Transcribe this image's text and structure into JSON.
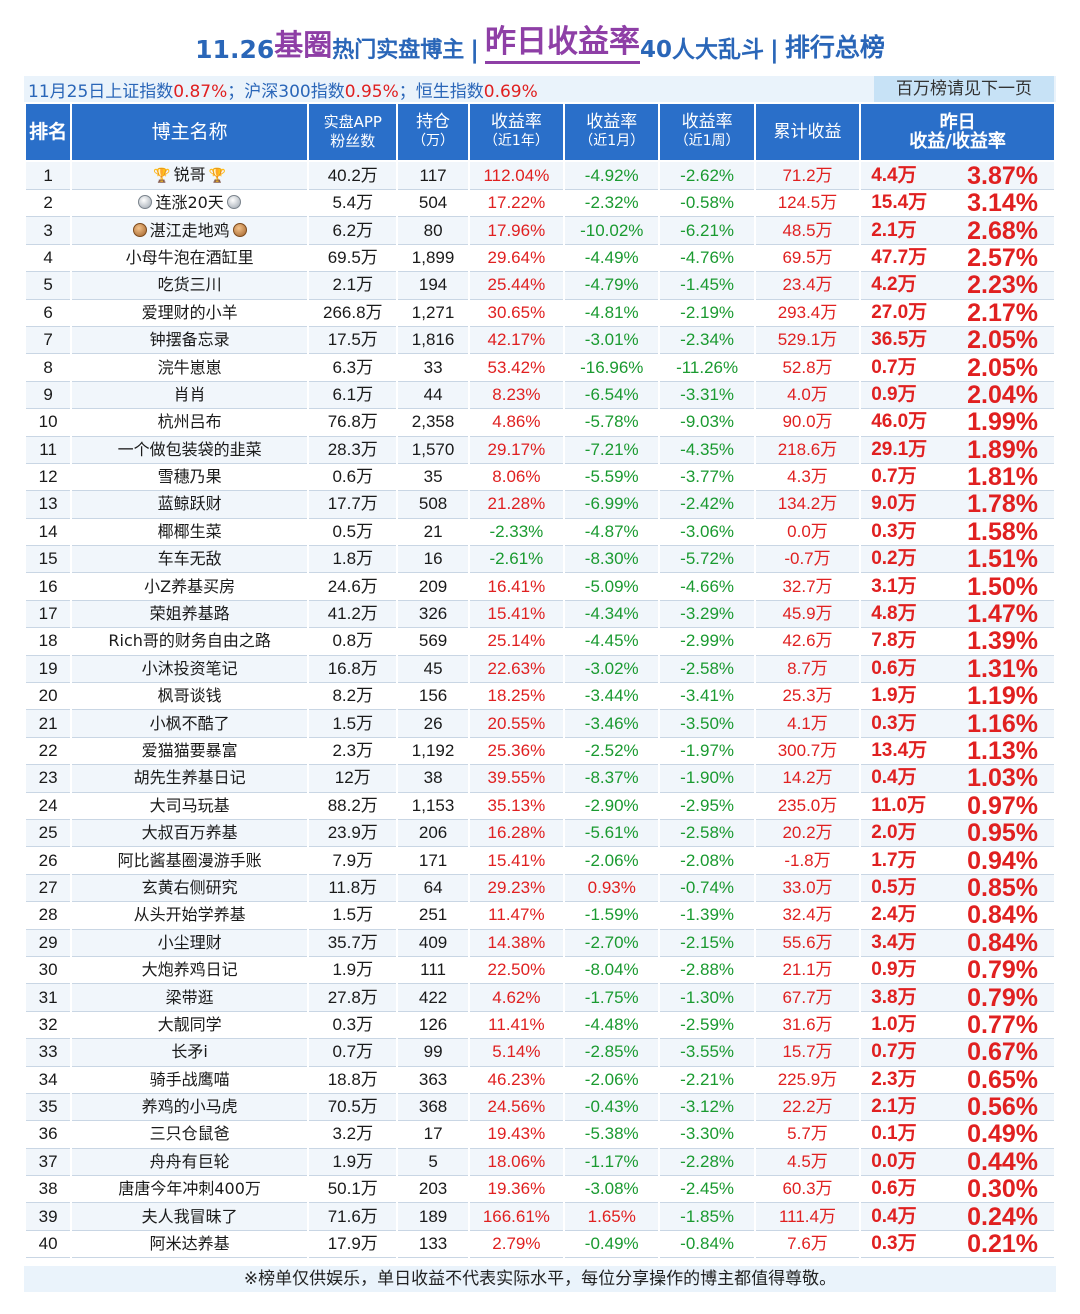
{
  "title": {
    "date": "11.26",
    "circle": "基圈",
    "part1": "热门实盘博主",
    "sep": "|",
    "highlight": "昨日收益率",
    "count": "40人大乱斗",
    "sep2": "|",
    "rank": "排行总榜"
  },
  "subhead": {
    "idx_prefix": "11月25日上证指数",
    "idx1": "0.87%",
    "idx_mid1": "；沪深300指数",
    "idx2": "0.95%",
    "idx_mid2": "；恒生指数",
    "idx3": "0.69%",
    "note": "百万榜请见下一页"
  },
  "headers": {
    "rank": "排名",
    "name": "博主名称",
    "fans_1": "实盘APP",
    "fans_2": "粉丝数",
    "hold_1": "持仓",
    "hold_2": "（万）",
    "y_1": "收益率",
    "y_2": "（近1年）",
    "m_1": "收益率",
    "m_2": "（近1月）",
    "w_1": "收益率",
    "w_2": "（近1周）",
    "cum": "累计收益",
    "last_1": "昨日",
    "last_2": "收益/收益率"
  },
  "rows": [
    {
      "rank": "1",
      "name": "锐哥",
      "medal": "trophy",
      "fans": "40.2万",
      "hold": "117",
      "y": "112.04%",
      "m": "-4.92%",
      "w": "-2.62%",
      "cum": "71.2万",
      "profit": "4.4万",
      "rate": "3.87%"
    },
    {
      "rank": "2",
      "name": "连涨20天",
      "medal": "silver",
      "fans": "5.4万",
      "hold": "504",
      "y": "17.22%",
      "m": "-2.32%",
      "w": "-0.58%",
      "cum": "124.5万",
      "profit": "15.4万",
      "rate": "3.14%"
    },
    {
      "rank": "3",
      "name": "湛江走地鸡",
      "medal": "bronze",
      "fans": "6.2万",
      "hold": "80",
      "y": "17.96%",
      "m": "-10.02%",
      "w": "-6.21%",
      "cum": "48.5万",
      "profit": "2.1万",
      "rate": "2.68%"
    },
    {
      "rank": "4",
      "name": "小母牛泡在酒缸里",
      "medal": "",
      "fans": "69.5万",
      "hold": "1,899",
      "y": "29.64%",
      "m": "-4.49%",
      "w": "-4.76%",
      "cum": "69.5万",
      "profit": "47.7万",
      "rate": "2.57%"
    },
    {
      "rank": "5",
      "name": "吃货三川",
      "medal": "",
      "fans": "2.1万",
      "hold": "194",
      "y": "25.44%",
      "m": "-4.79%",
      "w": "-1.45%",
      "cum": "23.4万",
      "profit": "4.2万",
      "rate": "2.23%"
    },
    {
      "rank": "6",
      "name": "爱理财的小羊",
      "medal": "",
      "fans": "266.8万",
      "hold": "1,271",
      "y": "30.65%",
      "m": "-4.81%",
      "w": "-2.19%",
      "cum": "293.4万",
      "profit": "27.0万",
      "rate": "2.17%"
    },
    {
      "rank": "7",
      "name": "钟摆备忘录",
      "medal": "",
      "fans": "17.5万",
      "hold": "1,816",
      "y": "42.17%",
      "m": "-3.01%",
      "w": "-2.34%",
      "cum": "529.1万",
      "profit": "36.5万",
      "rate": "2.05%"
    },
    {
      "rank": "8",
      "name": "浣牛崽崽",
      "medal": "",
      "fans": "6.3万",
      "hold": "33",
      "y": "53.42%",
      "m": "-16.96%",
      "w": "-11.26%",
      "cum": "52.8万",
      "profit": "0.7万",
      "rate": "2.05%"
    },
    {
      "rank": "9",
      "name": "肖肖",
      "medal": "",
      "fans": "6.1万",
      "hold": "44",
      "y": "8.23%",
      "m": "-6.54%",
      "w": "-3.31%",
      "cum": "4.0万",
      "profit": "0.9万",
      "rate": "2.04%"
    },
    {
      "rank": "10",
      "name": "杭州吕布",
      "medal": "",
      "fans": "76.8万",
      "hold": "2,358",
      "y": "4.86%",
      "m": "-5.78%",
      "w": "-9.03%",
      "cum": "90.0万",
      "profit": "46.0万",
      "rate": "1.99%"
    },
    {
      "rank": "11",
      "name": "一个做包装袋的韭菜",
      "medal": "",
      "fans": "28.3万",
      "hold": "1,570",
      "y": "29.17%",
      "m": "-7.21%",
      "w": "-4.35%",
      "cum": "218.6万",
      "profit": "29.1万",
      "rate": "1.89%"
    },
    {
      "rank": "12",
      "name": "雪穗乃果",
      "medal": "",
      "fans": "0.6万",
      "hold": "35",
      "y": "8.06%",
      "m": "-5.59%",
      "w": "-3.77%",
      "cum": "4.3万",
      "profit": "0.7万",
      "rate": "1.81%"
    },
    {
      "rank": "13",
      "name": "蓝鲸跃财",
      "medal": "",
      "fans": "17.7万",
      "hold": "508",
      "y": "21.28%",
      "m": "-6.99%",
      "w": "-2.42%",
      "cum": "134.2万",
      "profit": "9.0万",
      "rate": "1.78%"
    },
    {
      "rank": "14",
      "name": "椰椰生菜",
      "medal": "",
      "fans": "0.5万",
      "hold": "21",
      "y": "-2.33%",
      "m": "-4.87%",
      "w": "-3.06%",
      "cum": "0.0万",
      "profit": "0.3万",
      "rate": "1.58%"
    },
    {
      "rank": "15",
      "name": "车车无敌",
      "medal": "",
      "fans": "1.8万",
      "hold": "16",
      "y": "-2.61%",
      "m": "-8.30%",
      "w": "-5.72%",
      "cum": "-0.7万",
      "profit": "0.2万",
      "rate": "1.51%"
    },
    {
      "rank": "16",
      "name": "小Z养基买房",
      "medal": "",
      "fans": "24.6万",
      "hold": "209",
      "y": "16.41%",
      "m": "-5.09%",
      "w": "-4.66%",
      "cum": "32.7万",
      "profit": "3.1万",
      "rate": "1.50%"
    },
    {
      "rank": "17",
      "name": "荣姐养基路",
      "medal": "",
      "fans": "41.2万",
      "hold": "326",
      "y": "15.41%",
      "m": "-4.34%",
      "w": "-3.29%",
      "cum": "45.9万",
      "profit": "4.8万",
      "rate": "1.47%"
    },
    {
      "rank": "18",
      "name": "Rich哥的财务自由之路",
      "medal": "",
      "fans": "0.8万",
      "hold": "569",
      "y": "25.14%",
      "m": "-4.45%",
      "w": "-2.99%",
      "cum": "42.6万",
      "profit": "7.8万",
      "rate": "1.39%"
    },
    {
      "rank": "19",
      "name": "小沐投资笔记",
      "medal": "",
      "fans": "16.8万",
      "hold": "45",
      "y": "22.63%",
      "m": "-3.02%",
      "w": "-2.58%",
      "cum": "8.7万",
      "profit": "0.6万",
      "rate": "1.31%"
    },
    {
      "rank": "20",
      "name": "枫哥谈钱",
      "medal": "",
      "fans": "8.2万",
      "hold": "156",
      "y": "18.25%",
      "m": "-3.44%",
      "w": "-3.41%",
      "cum": "25.3万",
      "profit": "1.9万",
      "rate": "1.19%"
    },
    {
      "rank": "21",
      "name": "小枫不酷了",
      "medal": "",
      "fans": "1.5万",
      "hold": "26",
      "y": "20.55%",
      "m": "-3.46%",
      "w": "-3.50%",
      "cum": "4.1万",
      "profit": "0.3万",
      "rate": "1.16%"
    },
    {
      "rank": "22",
      "name": "爱猫猫要暴富",
      "medal": "",
      "fans": "2.3万",
      "hold": "1,192",
      "y": "25.36%",
      "m": "-2.52%",
      "w": "-1.97%",
      "cum": "300.7万",
      "profit": "13.4万",
      "rate": "1.13%"
    },
    {
      "rank": "23",
      "name": "胡先生养基日记",
      "medal": "",
      "fans": "12万",
      "hold": "38",
      "y": "39.55%",
      "m": "-8.37%",
      "w": "-1.90%",
      "cum": "14.2万",
      "profit": "0.4万",
      "rate": "1.03%"
    },
    {
      "rank": "24",
      "name": "大司马玩基",
      "medal": "",
      "fans": "88.2万",
      "hold": "1,153",
      "y": "35.13%",
      "m": "-2.90%",
      "w": "-2.95%",
      "cum": "235.0万",
      "profit": "11.0万",
      "rate": "0.97%"
    },
    {
      "rank": "25",
      "name": "大叔百万养基",
      "medal": "",
      "fans": "23.9万",
      "hold": "206",
      "y": "16.28%",
      "m": "-5.61%",
      "w": "-2.58%",
      "cum": "20.2万",
      "profit": "2.0万",
      "rate": "0.95%"
    },
    {
      "rank": "26",
      "name": "阿比酱基圈漫游手账",
      "medal": "",
      "fans": "7.9万",
      "hold": "171",
      "y": "15.41%",
      "m": "-2.06%",
      "w": "-2.08%",
      "cum": "-1.8万",
      "profit": "1.7万",
      "rate": "0.94%"
    },
    {
      "rank": "27",
      "name": "玄黄右侧研究",
      "medal": "",
      "fans": "11.8万",
      "hold": "64",
      "y": "29.23%",
      "m": "0.93%",
      "w": "-0.74%",
      "cum": "33.0万",
      "profit": "0.5万",
      "rate": "0.85%"
    },
    {
      "rank": "28",
      "name": "从头开始学养基",
      "medal": "",
      "fans": "1.5万",
      "hold": "251",
      "y": "11.47%",
      "m": "-1.59%",
      "w": "-1.39%",
      "cum": "32.4万",
      "profit": "2.4万",
      "rate": "0.84%"
    },
    {
      "rank": "29",
      "name": "小尘理财",
      "medal": "",
      "fans": "35.7万",
      "hold": "409",
      "y": "14.38%",
      "m": "-2.70%",
      "w": "-2.15%",
      "cum": "55.6万",
      "profit": "3.4万",
      "rate": "0.84%"
    },
    {
      "rank": "30",
      "name": "大炮养鸡日记",
      "medal": "",
      "fans": "1.9万",
      "hold": "111",
      "y": "22.50%",
      "m": "-8.04%",
      "w": "-2.88%",
      "cum": "21.1万",
      "profit": "0.9万",
      "rate": "0.79%"
    },
    {
      "rank": "31",
      "name": "梁带逛",
      "medal": "",
      "fans": "27.8万",
      "hold": "422",
      "y": "4.62%",
      "m": "-1.75%",
      "w": "-1.30%",
      "cum": "67.7万",
      "profit": "3.8万",
      "rate": "0.79%"
    },
    {
      "rank": "32",
      "name": "大靓同学",
      "medal": "",
      "fans": "0.3万",
      "hold": "126",
      "y": "11.41%",
      "m": "-4.48%",
      "w": "-2.59%",
      "cum": "31.6万",
      "profit": "1.0万",
      "rate": "0.77%"
    },
    {
      "rank": "33",
      "name": "长矛i",
      "medal": "",
      "fans": "0.7万",
      "hold": "99",
      "y": "5.14%",
      "m": "-2.85%",
      "w": "-3.55%",
      "cum": "15.7万",
      "profit": "0.7万",
      "rate": "0.67%"
    },
    {
      "rank": "34",
      "name": "骑手战鹰喵",
      "medal": "",
      "fans": "18.8万",
      "hold": "363",
      "y": "46.23%",
      "m": "-2.06%",
      "w": "-2.21%",
      "cum": "225.9万",
      "profit": "2.3万",
      "rate": "0.65%"
    },
    {
      "rank": "35",
      "name": "养鸡的小马虎",
      "medal": "",
      "fans": "70.5万",
      "hold": "368",
      "y": "24.56%",
      "m": "-0.43%",
      "w": "-3.12%",
      "cum": "22.2万",
      "profit": "2.1万",
      "rate": "0.56%"
    },
    {
      "rank": "36",
      "name": "三只仓鼠爸",
      "medal": "",
      "fans": "3.2万",
      "hold": "17",
      "y": "19.43%",
      "m": "-5.38%",
      "w": "-3.30%",
      "cum": "5.7万",
      "profit": "0.1万",
      "rate": "0.49%"
    },
    {
      "rank": "37",
      "name": "舟舟有巨轮",
      "medal": "",
      "fans": "1.9万",
      "hold": "5",
      "y": "18.06%",
      "m": "-1.17%",
      "w": "-2.28%",
      "cum": "4.5万",
      "profit": "0.0万",
      "rate": "0.44%"
    },
    {
      "rank": "38",
      "name": "唐唐今年冲刺400万",
      "medal": "",
      "fans": "50.1万",
      "hold": "203",
      "y": "19.36%",
      "m": "-3.08%",
      "w": "-2.45%",
      "cum": "60.3万",
      "profit": "0.6万",
      "rate": "0.30%"
    },
    {
      "rank": "39",
      "name": "夫人我冒昧了",
      "medal": "",
      "fans": "71.6万",
      "hold": "189",
      "y": "166.61%",
      "m": "1.65%",
      "w": "-1.85%",
      "cum": "111.4万",
      "profit": "0.4万",
      "rate": "0.24%"
    },
    {
      "rank": "40",
      "name": "阿米达养基",
      "medal": "",
      "fans": "17.9万",
      "hold": "133",
      "y": "2.79%",
      "m": "-0.49%",
      "w": "-0.84%",
      "cum": "7.6万",
      "profit": "0.3万",
      "rate": "0.21%"
    }
  ],
  "footer": "※榜单仅供娱乐，单日收益不代表实际水平，每位分享操作的博主都值得尊敬。"
}
